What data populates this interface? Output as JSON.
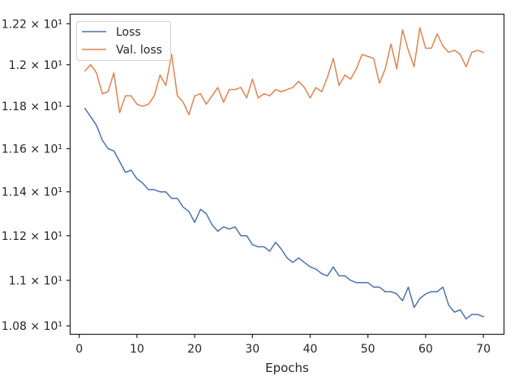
{
  "chart_data": {
    "type": "line",
    "title": "",
    "xlabel": "Epochs",
    "ylabel": "",
    "xlim": [
      -1.5,
      73.5
    ],
    "ylim": [
      10.765,
      12.245
    ],
    "y_scale": "log",
    "x_ticks": [
      0,
      10,
      20,
      30,
      40,
      50,
      60,
      70
    ],
    "x_tick_labels": [
      "0",
      "10",
      "20",
      "30",
      "40",
      "50",
      "60",
      "70"
    ],
    "y_ticks": [
      10.8,
      11.0,
      11.2,
      11.4,
      11.6,
      11.8,
      12.0,
      12.2
    ],
    "y_tick_labels": [
      "1.08 × 10¹",
      "1.1 × 10¹",
      "1.12 × 10¹",
      "1.14 × 10¹",
      "1.16 × 10¹",
      "1.18 × 10¹",
      "1.2 × 10¹",
      "1.22 × 10¹"
    ],
    "grid": false,
    "legend_position": "top-left",
    "x": [
      1,
      2,
      3,
      4,
      5,
      6,
      7,
      8,
      9,
      10,
      11,
      12,
      13,
      14,
      15,
      16,
      17,
      18,
      19,
      20,
      21,
      22,
      23,
      24,
      25,
      26,
      27,
      28,
      29,
      30,
      31,
      32,
      33,
      34,
      35,
      36,
      37,
      38,
      39,
      40,
      41,
      42,
      43,
      44,
      45,
      46,
      47,
      48,
      49,
      50,
      51,
      52,
      53,
      54,
      55,
      56,
      57,
      58,
      59,
      60,
      61,
      62,
      63,
      64,
      65,
      66,
      67,
      68,
      69,
      70
    ],
    "series": [
      {
        "name": "Loss",
        "color": "#4c72b0",
        "values": [
          11.79,
          11.75,
          11.71,
          11.64,
          11.6,
          11.59,
          11.54,
          11.49,
          11.5,
          11.46,
          11.44,
          11.41,
          11.41,
          11.4,
          11.4,
          11.37,
          11.37,
          11.33,
          11.31,
          11.26,
          11.32,
          11.3,
          11.25,
          11.22,
          11.24,
          11.23,
          11.24,
          11.2,
          11.2,
          11.16,
          11.15,
          11.15,
          11.13,
          11.17,
          11.14,
          11.1,
          11.08,
          11.1,
          11.08,
          11.06,
          11.05,
          11.03,
          11.02,
          11.06,
          11.02,
          11.02,
          11.0,
          10.99,
          10.99,
          10.99,
          10.97,
          10.97,
          10.95,
          10.95,
          10.94,
          10.91,
          10.97,
          10.88,
          10.92,
          10.94,
          10.95,
          10.95,
          10.97,
          10.89,
          10.86,
          10.87,
          10.83,
          10.85,
          10.85,
          10.84
        ]
      },
      {
        "name": "Val. loss",
        "color": "#dd8452",
        "values": [
          11.97,
          12.0,
          11.96,
          11.86,
          11.87,
          11.96,
          11.77,
          11.85,
          11.85,
          11.81,
          11.8,
          11.81,
          11.85,
          11.95,
          11.9,
          12.05,
          11.85,
          11.82,
          11.76,
          11.85,
          11.86,
          11.81,
          11.85,
          11.89,
          11.82,
          11.88,
          11.88,
          11.89,
          11.84,
          11.93,
          11.84,
          11.86,
          11.85,
          11.88,
          11.87,
          11.88,
          11.89,
          11.92,
          11.89,
          11.84,
          11.89,
          11.87,
          11.94,
          12.03,
          11.9,
          11.95,
          11.93,
          11.98,
          12.05,
          12.04,
          12.03,
          11.91,
          11.98,
          12.1,
          11.98,
          12.17,
          12.07,
          11.99,
          12.18,
          12.08,
          12.08,
          12.15,
          12.09,
          12.06,
          12.07,
          12.05,
          11.99,
          12.06,
          12.07,
          12.06
        ]
      }
    ]
  }
}
